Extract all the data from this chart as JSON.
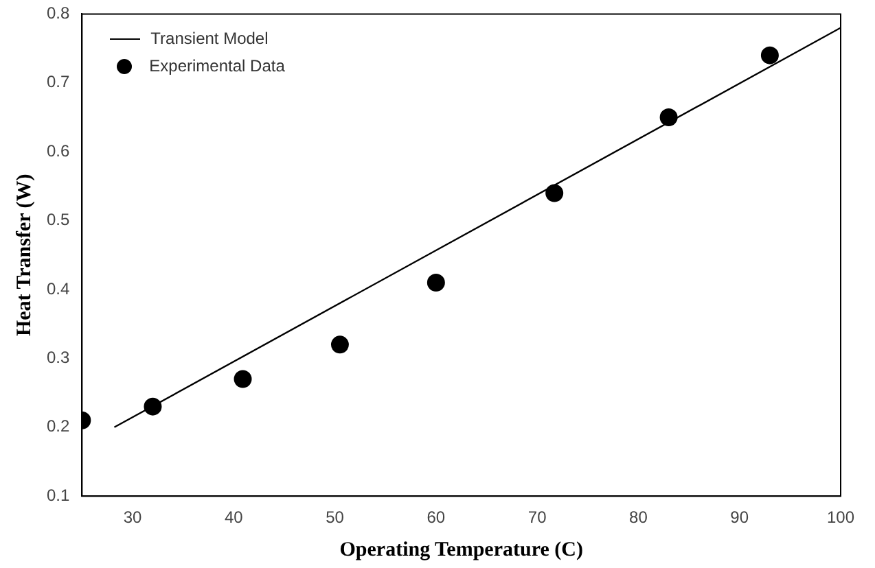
{
  "chart_data": {
    "type": "scatter",
    "xlabel": "Operating Temperature (C)",
    "ylabel": "Heat Transfer (W)",
    "xlim": [
      25,
      100
    ],
    "xticks": [
      30,
      40,
      50,
      60,
      70,
      80,
      90,
      100
    ],
    "ylim": [
      0.1,
      0.8
    ],
    "yticks": [
      0.1,
      0.2,
      0.3,
      0.4,
      0.5,
      0.6,
      0.7,
      0.8
    ],
    "legend": "top left",
    "grid": false,
    "series": [
      {
        "name": "Transient Model",
        "type": "line",
        "color": "#000000",
        "x": [
          28.2,
          100
        ],
        "values": [
          0.2,
          0.78
        ],
        "marker": "none",
        "line_style": "solid"
      },
      {
        "name": "Experimental Data",
        "type": "scatter",
        "color": "#000000",
        "marker": "circle",
        "x": [
          25,
          32,
          40.9,
          50.5,
          60,
          71.7,
          83,
          93
        ],
        "values": [
          0.21,
          0.23,
          0.27,
          0.32,
          0.41,
          0.54,
          0.65,
          0.74
        ]
      }
    ]
  }
}
